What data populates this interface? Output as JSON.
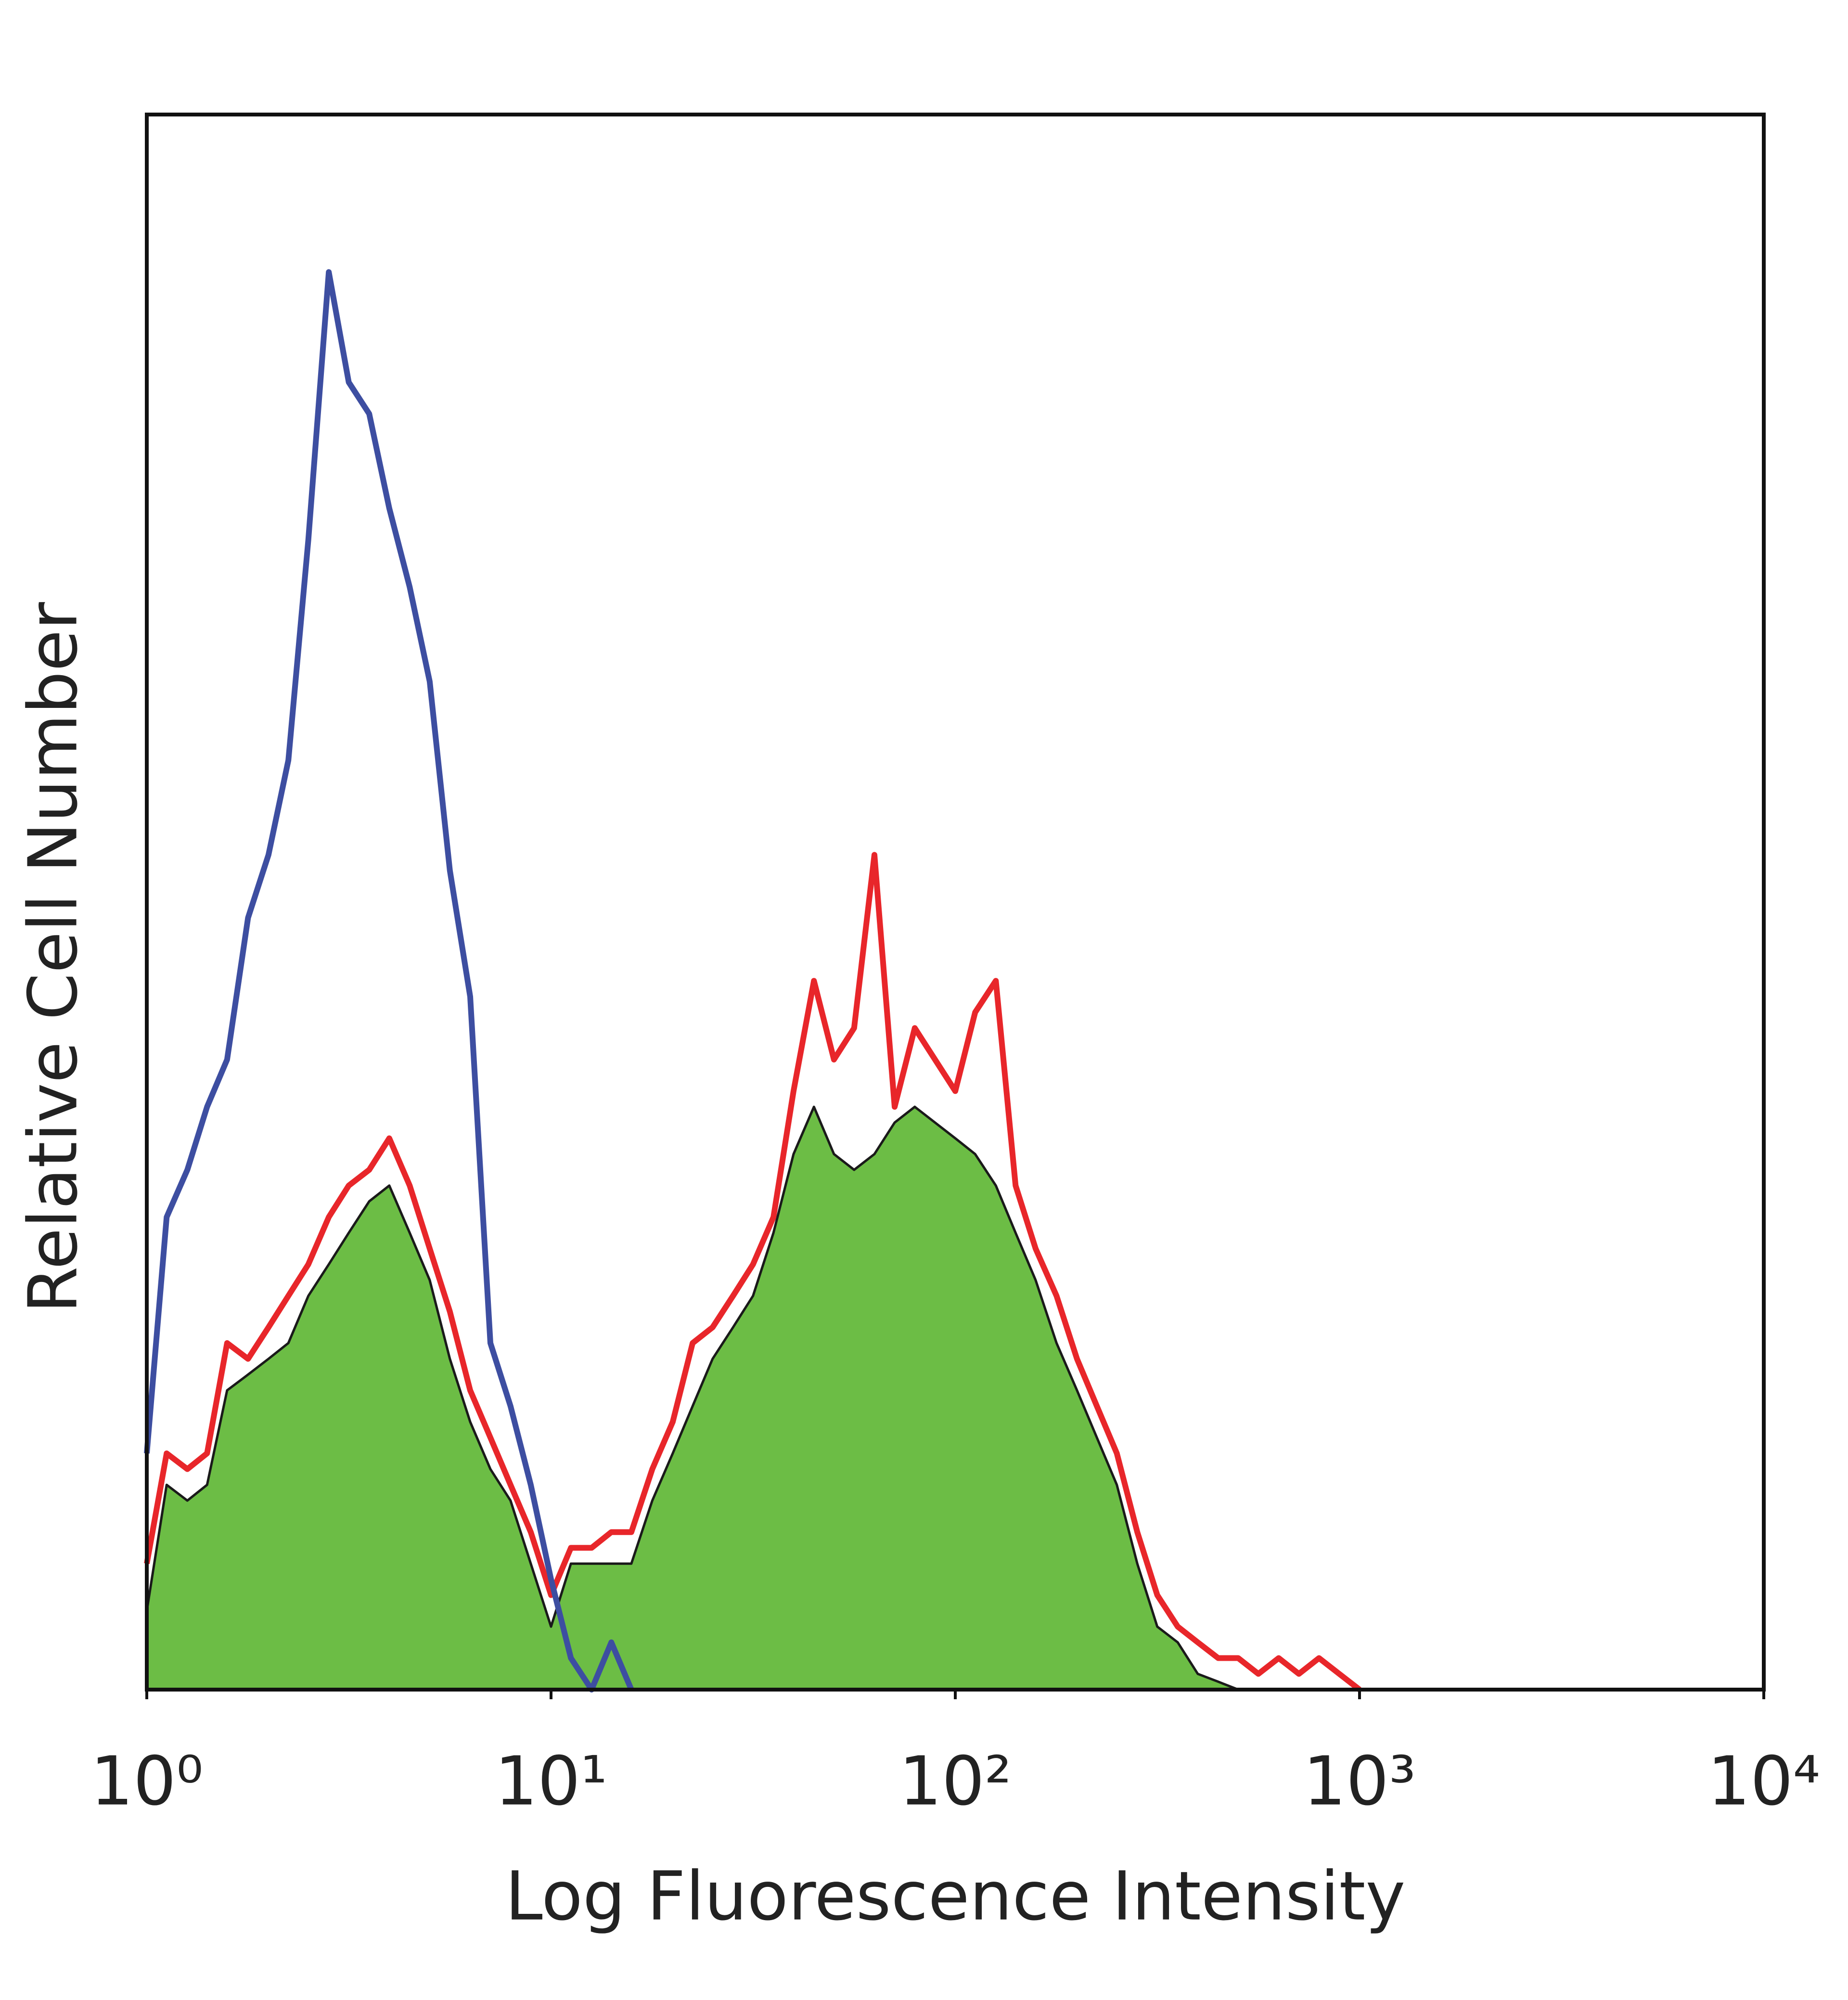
{
  "chart_data": {
    "type": "line",
    "x_label": "Log Fluorescence Intensity",
    "y_label": "Relative Cell Number",
    "x_scale": "log",
    "xlim": [
      1,
      10000
    ],
    "xticks": [
      {
        "value": 1,
        "label": "10⁰"
      },
      {
        "value": 10,
        "label": "10¹"
      },
      {
        "value": 100,
        "label": "10²"
      },
      {
        "value": 1000,
        "label": "10³"
      },
      {
        "value": 10000,
        "label": "10⁴"
      }
    ],
    "ylim": [
      0,
      100
    ],
    "x": [
      1,
      1.12,
      1.26,
      1.41,
      1.58,
      1.78,
      2,
      2.24,
      2.51,
      2.82,
      3.16,
      3.55,
      3.98,
      4.47,
      5.01,
      5.62,
      6.31,
      7.08,
      7.94,
      8.91,
      10,
      11.2,
      12.6,
      14.1,
      15.8,
      17.8,
      20,
      22.4,
      25.1,
      28.2,
      31.6,
      35.5,
      39.8,
      44.7,
      50.1,
      56.2,
      63.1,
      70.8,
      79.4,
      89.1,
      100,
      112,
      126,
      141,
      158,
      178,
      200,
      224,
      251,
      282,
      316,
      355,
      398,
      447,
      501,
      562,
      631,
      708,
      794,
      891,
      1000
    ],
    "series": [
      {
        "color": "#6cbd45",
        "fill": true,
        "values": [
          5,
          13,
          12,
          13,
          19,
          20,
          21,
          22,
          25,
          27,
          29,
          31,
          32,
          29,
          26,
          21,
          17,
          14,
          12,
          8,
          4,
          8,
          8,
          8,
          8,
          12,
          15,
          18,
          21,
          23,
          25,
          29,
          34,
          37,
          34,
          33,
          34,
          36,
          37,
          36,
          35,
          34,
          32,
          29,
          26,
          22,
          19,
          16,
          13,
          8,
          4,
          3,
          1,
          0.5,
          0,
          0,
          0,
          0,
          0,
          0,
          0
        ]
      },
      {
        "color": "#e8262a",
        "fill": false,
        "values": [
          8,
          15,
          14,
          15,
          22,
          21,
          23,
          25,
          27,
          30,
          32,
          33,
          35,
          32,
          28,
          24,
          19,
          16,
          13,
          10,
          6,
          9,
          9,
          10,
          10,
          14,
          17,
          22,
          23,
          25,
          27,
          30,
          38,
          45,
          40,
          42,
          53,
          37,
          42,
          40,
          38,
          43,
          45,
          32,
          28,
          25,
          21,
          18,
          15,
          10,
          6,
          4,
          3,
          2,
          2,
          1,
          2,
          1,
          2,
          1,
          0
        ]
      },
      {
        "color": "#3d4ea1",
        "fill": false,
        "values": [
          15,
          30,
          33,
          37,
          40,
          49,
          53,
          59,
          73,
          90,
          83,
          81,
          75,
          70,
          64,
          52,
          44,
          22,
          18,
          13,
          7,
          2,
          0,
          3,
          0,
          null,
          null,
          null,
          null,
          null,
          null,
          null,
          null,
          null,
          null,
          null,
          null,
          null,
          null,
          null,
          null,
          null,
          null,
          null,
          null,
          null,
          null,
          null,
          null,
          null,
          null,
          null,
          null,
          null,
          null,
          null,
          null,
          null,
          null,
          null,
          null
        ]
      }
    ]
  }
}
